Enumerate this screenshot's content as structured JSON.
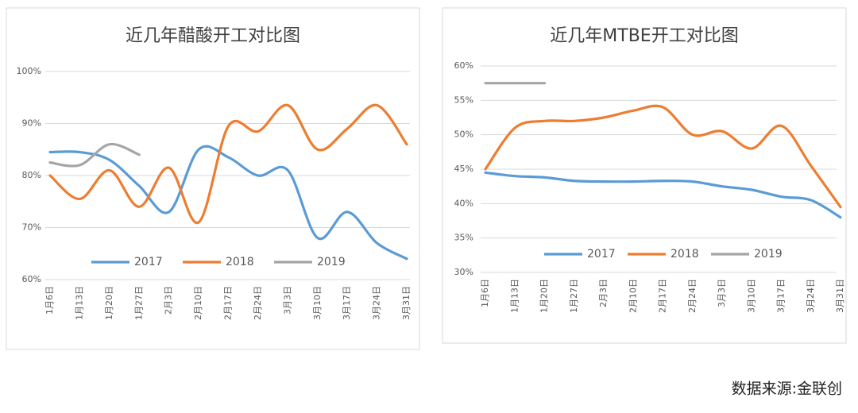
{
  "chart_data": [
    {
      "type": "line",
      "title": "近几年醋酸开工对比图",
      "categories": [
        "1月6日",
        "1月13日",
        "1月20日",
        "1月27日",
        "2月3日",
        "2月10日",
        "2月17日",
        "2月24日",
        "3月3日",
        "3月10日",
        "3月17日",
        "3月24日",
        "3月31日"
      ],
      "series": [
        {
          "name": "2017",
          "color": "#5b9bd5",
          "values": [
            84.5,
            84.5,
            83,
            78,
            73,
            85,
            83.5,
            80,
            81,
            68,
            73,
            67,
            64
          ]
        },
        {
          "name": "2018",
          "color": "#ed7d31",
          "values": [
            80,
            75.5,
            81,
            74,
            81.5,
            71,
            89.5,
            88.5,
            93.5,
            85,
            89,
            93.5,
            86
          ]
        },
        {
          "name": "2019",
          "color": "#a5a5a5",
          "values": [
            82.5,
            82,
            86,
            84,
            null,
            null,
            null,
            null,
            null,
            null,
            null,
            null,
            null
          ]
        }
      ],
      "ylim": [
        60,
        100
      ],
      "yticks": [
        {
          "value": 60,
          "label": "60%"
        },
        {
          "value": 70,
          "label": "70%"
        },
        {
          "value": 80,
          "label": "80%"
        },
        {
          "value": 90,
          "label": "90%"
        },
        {
          "value": 100,
          "label": "100%"
        }
      ],
      "grid": true
    },
    {
      "type": "line",
      "title": "近几年MTBE开工对比图",
      "categories": [
        "1月6日",
        "1月13日",
        "1月20日",
        "1月27日",
        "2月3日",
        "2月10日",
        "2月17日",
        "2月24日",
        "3月3日",
        "3月10日",
        "3月17日",
        "3月24日",
        "3月31日"
      ],
      "series": [
        {
          "name": "2017",
          "color": "#5b9bd5",
          "values": [
            44.5,
            44,
            43.8,
            43.3,
            43.2,
            43.2,
            43.3,
            43.2,
            42.5,
            42,
            41,
            40.5,
            38
          ]
        },
        {
          "name": "2018",
          "color": "#ed7d31",
          "values": [
            45,
            51,
            52,
            52,
            52.5,
            53.5,
            54,
            50,
            50.5,
            48,
            51.3,
            45.5,
            39.5
          ]
        },
        {
          "name": "2019",
          "color": "#a5a5a5",
          "values": [
            57.5,
            57.5,
            57.5,
            null,
            null,
            null,
            null,
            null,
            null,
            null,
            null,
            null,
            null
          ]
        }
      ],
      "ylim": [
        30,
        60
      ],
      "yticks": [
        {
          "value": 30,
          "label": "30%"
        },
        {
          "value": 35,
          "label": "35%"
        },
        {
          "value": 40,
          "label": "40%"
        },
        {
          "value": 45,
          "label": "45%"
        },
        {
          "value": 50,
          "label": "50%"
        },
        {
          "value": 55,
          "label": "55%"
        },
        {
          "value": 60,
          "label": "60%"
        }
      ],
      "grid": true
    }
  ],
  "source": "数据来源:金联创"
}
